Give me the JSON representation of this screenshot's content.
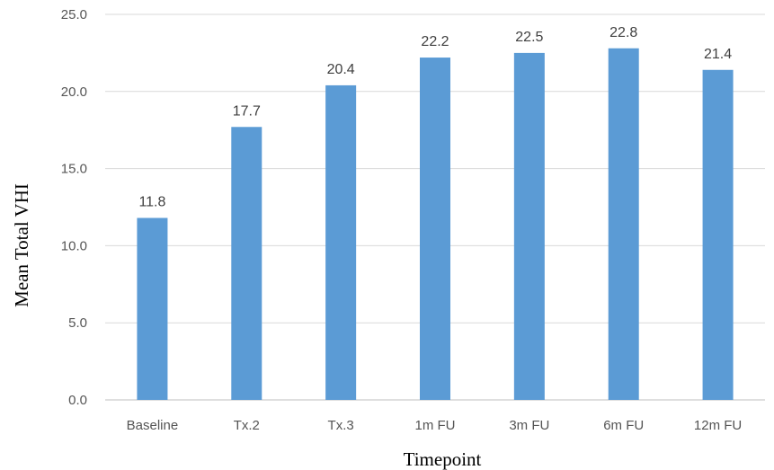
{
  "chart_data": {
    "type": "bar",
    "categories": [
      "Baseline",
      "Tx.2",
      "Tx.3",
      "1m FU",
      "3m FU",
      "6m FU",
      "12m FU"
    ],
    "values": [
      11.8,
      17.7,
      20.4,
      22.2,
      22.5,
      22.8,
      21.4
    ],
    "data_labels": [
      "11.8",
      "17.7",
      "20.4",
      "22.2",
      "22.5",
      "22.8",
      "21.4"
    ],
    "xlabel": "Timepoint",
    "ylabel": "Mean Total VHI",
    "ylim": [
      0,
      25
    ],
    "yticks": [
      0,
      5,
      10,
      15,
      20,
      25
    ],
    "ytick_labels": [
      "0.0",
      "5.0",
      "10.0",
      "15.0",
      "20.0",
      "25.0"
    ],
    "grid": "horizontal",
    "legend": "none",
    "bar_color": "#5b9bd5"
  }
}
